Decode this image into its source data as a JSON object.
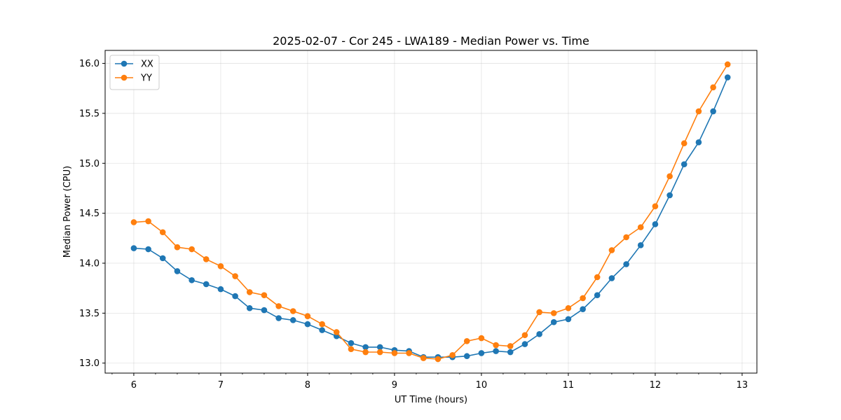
{
  "chart_data": {
    "type": "line",
    "title": "2025-02-07 - Cor 245 - LWA189 - Median Power vs. Time",
    "xlabel": "UT Time (hours)",
    "ylabel": "Median Power (CPU)",
    "xlim": [
      5.67,
      13.17
    ],
    "ylim": [
      12.9,
      16.13
    ],
    "xticks": [
      6,
      7,
      8,
      9,
      10,
      11,
      12,
      13
    ],
    "yticks": [
      13.0,
      13.5,
      14.0,
      14.5,
      15.0,
      15.5,
      16.0
    ],
    "xtick_labels": [
      "6",
      "7",
      "8",
      "9",
      "10",
      "11",
      "12",
      "13"
    ],
    "ytick_labels": [
      "13.0",
      "13.5",
      "14.0",
      "14.5",
      "15.0",
      "15.5",
      "16.0"
    ],
    "grid": true,
    "legend_position": "top-left",
    "x": [
      6.0,
      6.167,
      6.333,
      6.5,
      6.667,
      6.833,
      7.0,
      7.167,
      7.333,
      7.5,
      7.667,
      7.833,
      8.0,
      8.167,
      8.333,
      8.5,
      8.667,
      8.833,
      9.0,
      9.167,
      9.333,
      9.5,
      9.667,
      9.833,
      10.0,
      10.167,
      10.333,
      10.5,
      10.667,
      10.833,
      11.0,
      11.167,
      11.333,
      11.5,
      11.667,
      11.833,
      12.0,
      12.167,
      12.333,
      12.5,
      12.667,
      12.833
    ],
    "series": [
      {
        "name": "XX",
        "color": "#1f77b4",
        "values": [
          14.15,
          14.14,
          14.05,
          13.92,
          13.83,
          13.79,
          13.74,
          13.67,
          13.55,
          13.53,
          13.45,
          13.43,
          13.39,
          13.33,
          13.27,
          13.2,
          13.16,
          13.16,
          13.13,
          13.12,
          13.06,
          13.06,
          13.06,
          13.07,
          13.1,
          13.12,
          13.11,
          13.19,
          13.29,
          13.41,
          13.44,
          13.54,
          13.68,
          13.85,
          13.99,
          14.18,
          14.39,
          14.68,
          14.99,
          15.21,
          15.52,
          15.86
        ]
      },
      {
        "name": "YY",
        "color": "#ff7f0e",
        "values": [
          14.41,
          14.42,
          14.31,
          14.16,
          14.14,
          14.04,
          13.97,
          13.87,
          13.71,
          13.68,
          13.57,
          13.52,
          13.47,
          13.39,
          13.31,
          13.14,
          13.11,
          13.11,
          13.1,
          13.1,
          13.05,
          13.04,
          13.08,
          13.22,
          13.25,
          13.18,
          13.17,
          13.28,
          13.51,
          13.5,
          13.55,
          13.65,
          13.86,
          14.13,
          14.26,
          14.36,
          14.57,
          14.87,
          15.2,
          15.52,
          15.76,
          15.99
        ]
      }
    ]
  }
}
